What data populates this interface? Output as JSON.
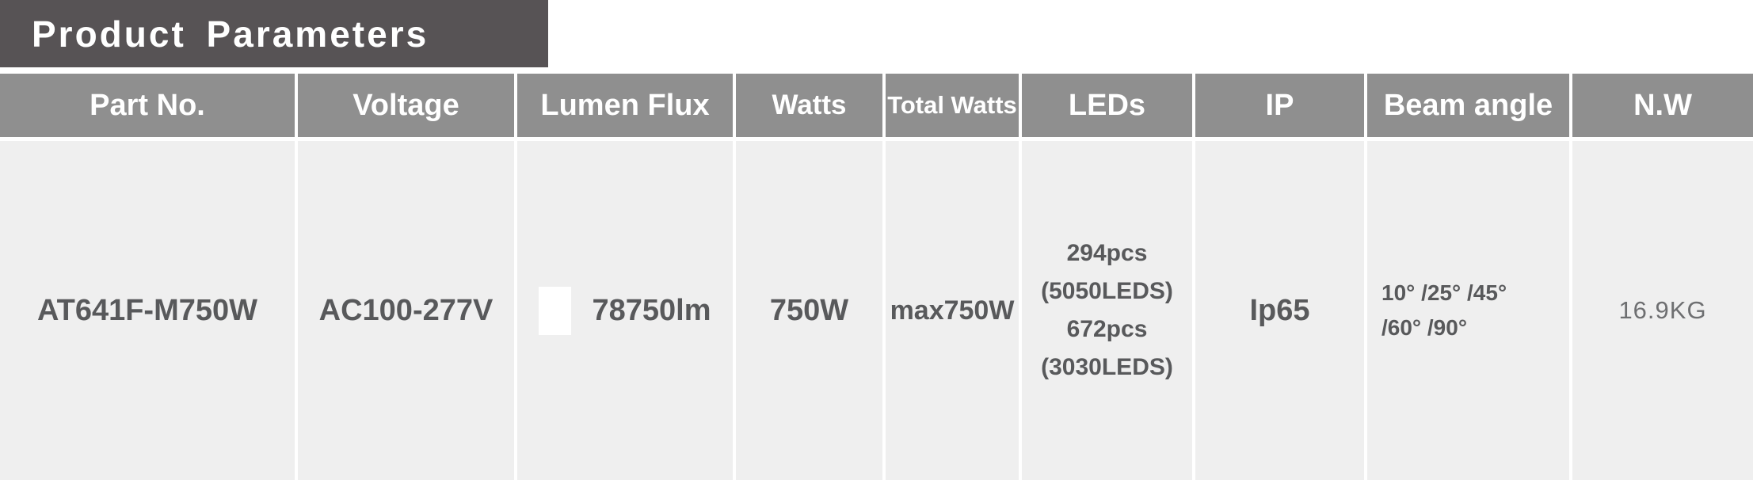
{
  "title": "Product Parameters",
  "table": {
    "columns": [
      {
        "key": "part_no",
        "label": "Part No."
      },
      {
        "key": "voltage",
        "label": "Voltage"
      },
      {
        "key": "lumen_flux",
        "label": "Lumen Flux"
      },
      {
        "key": "watts",
        "label": "Watts"
      },
      {
        "key": "total_watts",
        "label": "Total Watts"
      },
      {
        "key": "leds",
        "label": "LEDs"
      },
      {
        "key": "ip",
        "label": "IP"
      },
      {
        "key": "beam_angle",
        "label": "Beam angle"
      },
      {
        "key": "nw",
        "label": "N.W"
      }
    ],
    "row": {
      "part_no": "AT641F-M750W",
      "voltage": "AC100-277V",
      "lumen_flux": "78750lm",
      "watts": "750W",
      "total_watts": "max750W",
      "leds_line1": "294pcs",
      "leds_line2": "(5050LEDS)",
      "leds_line3": "672pcs",
      "leds_line4": "(3030LEDS)",
      "ip": "Ip65",
      "beam_angle_line1": "10° /25° /45°",
      "beam_angle_line2": "/60° /90°",
      "nw": "16.9KG"
    }
  },
  "colors": {
    "banner_bg": "#575355",
    "header_bg": "#8F8F8F",
    "cell_bg": "#EFEFEF",
    "text_dark": "#58595B",
    "text_light_gray": "#6E6F71",
    "divider_white": "#FFFFFF"
  }
}
